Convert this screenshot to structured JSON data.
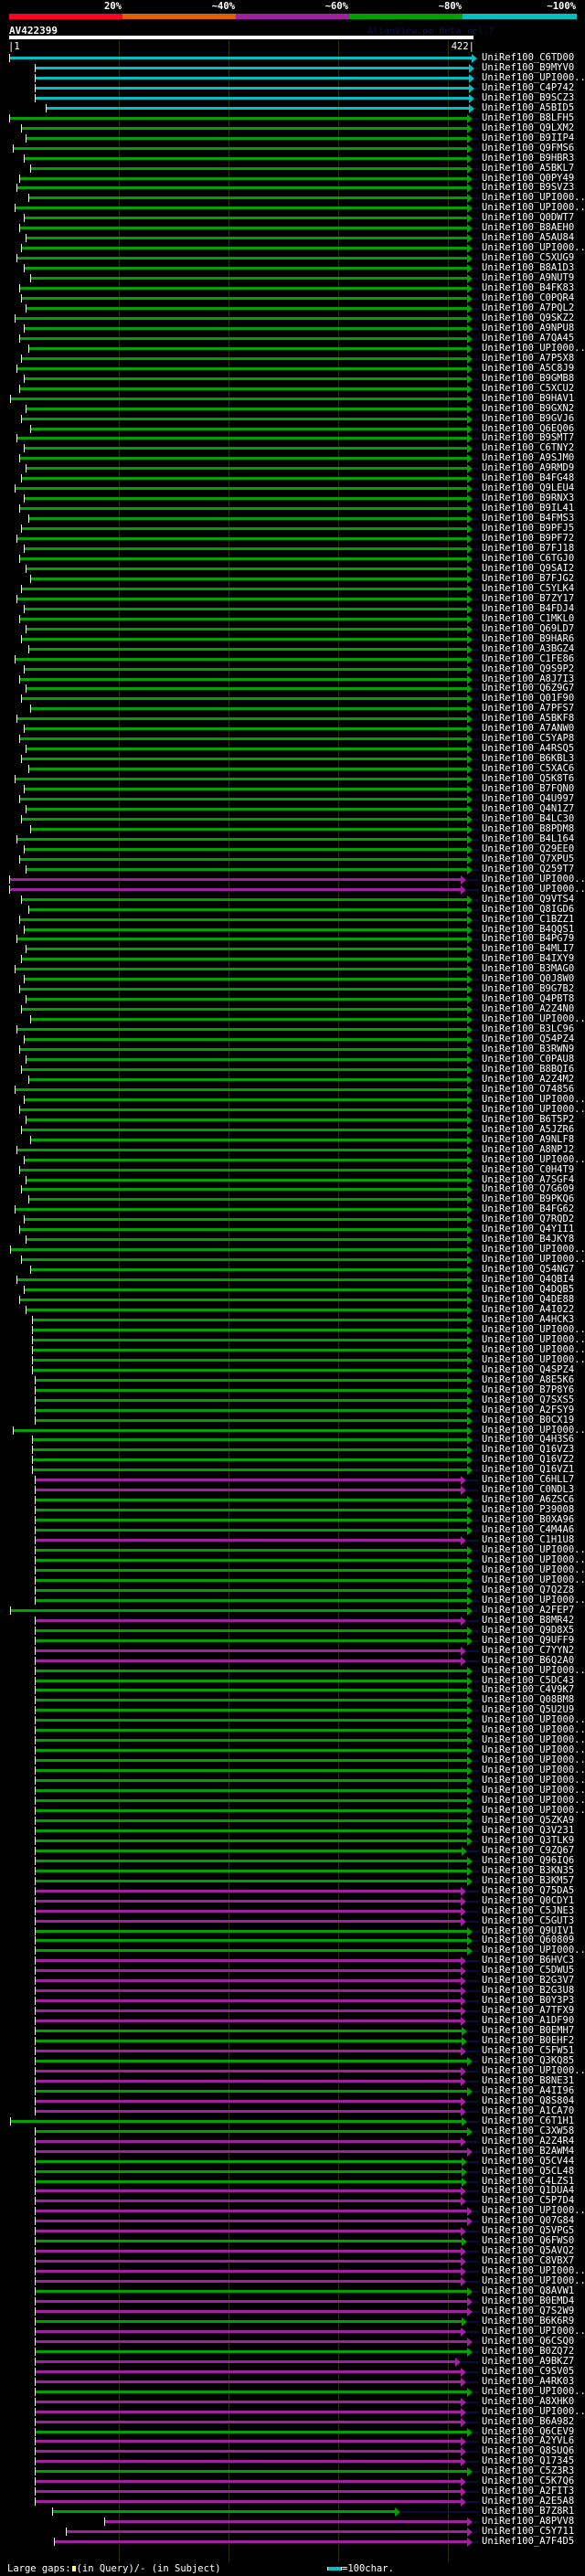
{
  "scale": {
    "labels": [
      "20%",
      "~40%",
      "~60%",
      "~80%",
      "~100%"
    ],
    "colors": [
      "#ff0020",
      "#e06000",
      "#a020a0",
      "#00a000",
      "#00c0c0"
    ]
  },
  "query": {
    "name": "AV422399",
    "start": "1",
    "end": "422",
    "length": 422
  },
  "watermark": "AlignView.pm Beta rel.7",
  "identity_colors": {
    "c": "#00c0c0",
    "g": "#00a000",
    "m": "#a020a0"
  },
  "footer": {
    "large_gaps_label": "Large gaps:",
    "in_query": "(in Query)/",
    "in_subject": "- (in Subject)",
    "scale_label": "=100char."
  },
  "rows": [
    [
      "UniRef100_C6TD00",
      "c",
      1,
      420
    ],
    [
      "UniRef100_B9MYV0",
      "c",
      24,
      418
    ],
    [
      "UniRef100_UPI000..",
      "c",
      24,
      418
    ],
    [
      "UniRef100_C4P742",
      "c",
      24,
      418
    ],
    [
      "UniRef100_B9SCZ3",
      "c",
      24,
      418
    ],
    [
      "UniRef100_A5BID5",
      "c",
      34,
      418
    ],
    [
      "UniRef100_B8LFH5",
      "g",
      1,
      416
    ],
    [
      "UniRef100_Q9LXM2",
      "g",
      12,
      416
    ],
    [
      "UniRef100_B9IIP4",
      "g",
      16,
      416
    ],
    [
      "UniRef100_Q9FMS6",
      "g",
      4,
      416
    ],
    [
      "UniRef100_B9HBR3",
      "g",
      14,
      416
    ],
    [
      "UniRef100_A5BKL7",
      "g",
      20,
      416
    ],
    [
      "UniRef100_Q0PY49",
      "g",
      10,
      416
    ],
    [
      "UniRef100_B9SVZ3",
      "g",
      8,
      416
    ],
    [
      "UniRef100_UPI000..",
      "g",
      18,
      416
    ],
    [
      "UniRef100_UPI000..",
      "g",
      6,
      416
    ],
    [
      "UniRef100_Q0DWT7",
      "g",
      14,
      416
    ],
    [
      "UniRef100_B8AEH0",
      "g",
      10,
      416
    ],
    [
      "UniRef100_A5AU84",
      "g",
      16,
      416
    ],
    [
      "UniRef100_UPI000..",
      "g",
      12,
      416
    ],
    [
      "UniRef100_C5XUG9",
      "g",
      8,
      416
    ],
    [
      "UniRef100_B8A1D3",
      "g",
      14,
      416
    ],
    [
      "UniRef100_A9NUT9",
      "g",
      20,
      416
    ],
    [
      "UniRef100_B4FK83",
      "g",
      10,
      416
    ],
    [
      "UniRef100_C0PQR4",
      "g",
      12,
      416
    ],
    [
      "UniRef100_A7PQL2",
      "g",
      16,
      416
    ],
    [
      "UniRef100_Q9SKZ2",
      "g",
      6,
      416
    ],
    [
      "UniRef100_A9NPU8",
      "g",
      14,
      416
    ],
    [
      "UniRef100_A7QA45",
      "g",
      10,
      416
    ],
    [
      "UniRef100_UPI000..",
      "g",
      18,
      416
    ],
    [
      "UniRef100_A7P5X8",
      "g",
      12,
      416
    ],
    [
      "UniRef100_A5C8J9",
      "g",
      8,
      416
    ],
    [
      "UniRef100_B9GMB8",
      "g",
      14,
      416
    ],
    [
      "UniRef100_C5XCU2",
      "g",
      10,
      416
    ],
    [
      "UniRef100_B9HAV1",
      "g",
      2,
      416
    ],
    [
      "UniRef100_B9GXN2",
      "g",
      16,
      416
    ],
    [
      "UniRef100_B9GVJ6",
      "g",
      12,
      416
    ],
    [
      "UniRef100_Q6EQ06",
      "g",
      20,
      416
    ],
    [
      "UniRef100_B9SMT7",
      "g",
      8,
      416
    ],
    [
      "UniRef100_C6TNY2",
      "g",
      14,
      416
    ],
    [
      "UniRef100_A9SJM0",
      "g",
      10,
      416
    ],
    [
      "UniRef100_A9RMD9",
      "g",
      16,
      416
    ],
    [
      "UniRef100_B4FG48",
      "g",
      12,
      416
    ],
    [
      "UniRef100_Q9LEU4",
      "g",
      6,
      416
    ],
    [
      "UniRef100_B9RNX3",
      "g",
      14,
      416
    ],
    [
      "UniRef100_B9IL41",
      "g",
      10,
      416
    ],
    [
      "UniRef100_B4FMS3",
      "g",
      18,
      416
    ],
    [
      "UniRef100_B9PFJ5",
      "g",
      12,
      416
    ],
    [
      "UniRef100_B9PF72",
      "g",
      8,
      416
    ],
    [
      "UniRef100_B7FJ18",
      "g",
      14,
      416
    ],
    [
      "UniRef100_C6TGJ0",
      "g",
      10,
      416
    ],
    [
      "UniRef100_Q9SAI2",
      "g",
      16,
      416
    ],
    [
      "UniRef100_B7FJG2",
      "g",
      20,
      416
    ],
    [
      "UniRef100_C5YLK4",
      "g",
      12,
      416
    ],
    [
      "UniRef100_B7ZY17",
      "g",
      8,
      416
    ],
    [
      "UniRef100_B4FDJ4",
      "g",
      14,
      416
    ],
    [
      "UniRef100_C1MKL0",
      "g",
      10,
      416
    ],
    [
      "UniRef100_Q69LD7",
      "g",
      16,
      416
    ],
    [
      "UniRef100_B9HAR6",
      "g",
      12,
      416
    ],
    [
      "UniRef100_A3BGZ4",
      "g",
      18,
      416
    ],
    [
      "UniRef100_C1FE86",
      "g",
      6,
      416
    ],
    [
      "UniRef100_Q9S9P2",
      "g",
      14,
      416
    ],
    [
      "UniRef100_A8J7I3",
      "g",
      10,
      416
    ],
    [
      "UniRef100_Q6Z9G7",
      "g",
      16,
      416
    ],
    [
      "UniRef100_Q01F90",
      "g",
      12,
      416
    ],
    [
      "UniRef100_A7PFS7",
      "g",
      20,
      416
    ],
    [
      "UniRef100_A5BKF8",
      "g",
      8,
      416
    ],
    [
      "UniRef100_A7ANW0",
      "g",
      14,
      416
    ],
    [
      "UniRef100_C5YAP8",
      "g",
      10,
      416
    ],
    [
      "UniRef100_A4RSQ5",
      "g",
      16,
      416
    ],
    [
      "UniRef100_B6KBL3",
      "g",
      12,
      416
    ],
    [
      "UniRef100_C5XAC6",
      "g",
      18,
      416
    ],
    [
      "UniRef100_Q5K8T6",
      "g",
      6,
      416
    ],
    [
      "UniRef100_B7FQN0",
      "g",
      14,
      416
    ],
    [
      "UniRef100_Q4U997",
      "g",
      10,
      416
    ],
    [
      "UniRef100_Q4N1Z7",
      "g",
      16,
      416
    ],
    [
      "UniRef100_B4LC30",
      "g",
      12,
      416
    ],
    [
      "UniRef100_B8PDM8",
      "g",
      20,
      416
    ],
    [
      "UniRef100_B4L164",
      "g",
      8,
      416
    ],
    [
      "UniRef100_Q29EE0",
      "g",
      14,
      416
    ],
    [
      "UniRef100_Q7XPU5",
      "g",
      10,
      416
    ],
    [
      "UniRef100_Q259T7",
      "g",
      16,
      416
    ],
    [
      "UniRef100_UPI000..",
      "m",
      1,
      410
    ],
    [
      "UniRef100_UPI000..",
      "m",
      1,
      410
    ],
    [
      "UniRef100_Q9VTS4",
      "g",
      12,
      416
    ],
    [
      "UniRef100_Q8IGD6",
      "g",
      18,
      416
    ],
    [
      "UniRef100_C1BZZ1",
      "g",
      10,
      416
    ],
    [
      "UniRef100_B4QQS1",
      "g",
      14,
      416
    ],
    [
      "UniRef100_B4PG79",
      "g",
      8,
      416
    ],
    [
      "UniRef100_B4MLI7",
      "g",
      16,
      416
    ],
    [
      "UniRef100_B4IXY9",
      "g",
      12,
      416
    ],
    [
      "UniRef100_B3MAG0",
      "g",
      6,
      416
    ],
    [
      "UniRef100_Q0J8W0",
      "g",
      14,
      416
    ],
    [
      "UniRef100_B9G7B2",
      "g",
      10,
      416
    ],
    [
      "UniRef100_Q4PBT8",
      "g",
      16,
      416
    ],
    [
      "UniRef100_A2Z4N0",
      "g",
      12,
      416
    ],
    [
      "UniRef100_UPI000..",
      "g",
      20,
      416
    ],
    [
      "UniRef100_B3LC96",
      "g",
      8,
      416
    ],
    [
      "UniRef100_Q54PZ4",
      "g",
      14,
      416
    ],
    [
      "UniRef100_B3RWN9",
      "g",
      10,
      416
    ],
    [
      "UniRef100_C0PAU8",
      "g",
      16,
      416
    ],
    [
      "UniRef100_B8BQI6",
      "g",
      12,
      416
    ],
    [
      "UniRef100_A2Z4M2",
      "g",
      18,
      416
    ],
    [
      "UniRef100_O74856",
      "g",
      6,
      416
    ],
    [
      "UniRef100_UPI000..",
      "g",
      14,
      416
    ],
    [
      "UniRef100_UPI000..",
      "g",
      10,
      416
    ],
    [
      "UniRef100_B6T5P2",
      "g",
      16,
      416
    ],
    [
      "UniRef100_A5JZR6",
      "g",
      12,
      416
    ],
    [
      "UniRef100_A9NLF8",
      "g",
      20,
      416
    ],
    [
      "UniRef100_A8NPJ2",
      "g",
      8,
      416
    ],
    [
      "UniRef100_UPI000..",
      "g",
      14,
      416
    ],
    [
      "UniRef100_C0H4T9",
      "g",
      10,
      416
    ],
    [
      "UniRef100_A7SGF4",
      "g",
      16,
      416
    ],
    [
      "UniRef100_Q7G609",
      "g",
      12,
      416
    ],
    [
      "UniRef100_B9PKQ6",
      "g",
      18,
      416
    ],
    [
      "UniRef100_B4FG62",
      "g",
      6,
      416
    ],
    [
      "UniRef100_Q7RQD2",
      "g",
      14,
      416
    ],
    [
      "UniRef100_Q4Y1I1",
      "g",
      10,
      416
    ],
    [
      "UniRef100_B4JKY8",
      "g",
      16,
      416
    ],
    [
      "UniRef100_UPI000..",
      "g",
      2,
      416
    ],
    [
      "UniRef100_UPI000..",
      "g",
      12,
      416
    ],
    [
      "UniRef100_Q54NG7",
      "g",
      20,
      416
    ],
    [
      "UniRef100_Q4QBI4",
      "g",
      8,
      416
    ],
    [
      "UniRef100_Q4DQB5",
      "g",
      14,
      416
    ],
    [
      "UniRef100_Q4DE88",
      "g",
      10,
      416
    ],
    [
      "UniRef100_A4I022",
      "g",
      16,
      416
    ],
    [
      "UniRef100_A4HCK3",
      "g",
      22,
      416
    ],
    [
      "UniRef100_UPI000..",
      "g",
      22,
      416
    ],
    [
      "UniRef100_UPI000..",
      "g",
      22,
      416
    ],
    [
      "UniRef100_UPI000..",
      "g",
      22,
      416
    ],
    [
      "UniRef100_UPI000..",
      "g",
      22,
      416
    ],
    [
      "UniRef100_Q4SPZ4",
      "g",
      22,
      416
    ],
    [
      "UniRef100_A8E5K6",
      "g",
      24,
      416
    ],
    [
      "UniRef100_B7P8Y6",
      "g",
      24,
      416
    ],
    [
      "UniRef100_Q7SXS5",
      "g",
      24,
      416
    ],
    [
      "UniRef100_A2FSY9",
      "g",
      24,
      416
    ],
    [
      "UniRef100_B0CX19",
      "g",
      24,
      416
    ],
    [
      "UniRef100_UPI000..",
      "g",
      4,
      416
    ],
    [
      "UniRef100_Q4H3S6",
      "g",
      22,
      416
    ],
    [
      "UniRef100_Q16VZ3",
      "g",
      22,
      416
    ],
    [
      "UniRef100_Q16VZ2",
      "g",
      22,
      416
    ],
    [
      "UniRef100_Q16VZ1",
      "g",
      22,
      416
    ],
    [
      "UniRef100_C6HLL7",
      "m",
      24,
      410
    ],
    [
      "UniRef100_C0NDL3",
      "m",
      24,
      410
    ],
    [
      "UniRef100_A6ZSC6",
      "g",
      24,
      416
    ],
    [
      "UniRef100_P39008",
      "g",
      24,
      416
    ],
    [
      "UniRef100_B0XA96",
      "g",
      24,
      416
    ],
    [
      "UniRef100_C4M4A6",
      "g",
      24,
      416
    ],
    [
      "UniRef100_C1H1U8",
      "m",
      24,
      410
    ],
    [
      "UniRef100_UPI000..",
      "g",
      24,
      416
    ],
    [
      "UniRef100_UPI000..",
      "g",
      24,
      416
    ],
    [
      "UniRef100_UPI000..",
      "g",
      24,
      416
    ],
    [
      "UniRef100_UPI000..",
      "g",
      24,
      416
    ],
    [
      "UniRef100_Q7Q2Z8",
      "g",
      24,
      416
    ],
    [
      "UniRef100_UPI000..",
      "g",
      24,
      416
    ],
    [
      "UniRef100_A2FEP7",
      "g",
      2,
      416
    ],
    [
      "UniRef100_B8MR42",
      "m",
      24,
      410
    ],
    [
      "UniRef100_Q9D8X5",
      "g",
      24,
      416
    ],
    [
      "UniRef100_Q9UFF9",
      "g",
      24,
      416
    ],
    [
      "UniRef100_C7YYN2",
      "m",
      24,
      410
    ],
    [
      "UniRef100_B6Q2A0",
      "m",
      24,
      410
    ],
    [
      "UniRef100_UPI000..",
      "g",
      24,
      416
    ],
    [
      "UniRef100_C5DC43",
      "g",
      24,
      416
    ],
    [
      "UniRef100_C4V9K7",
      "g",
      24,
      416
    ],
    [
      "UniRef100_Q08BM8",
      "g",
      24,
      416
    ],
    [
      "UniRef100_Q5U2U9",
      "g",
      24,
      416
    ],
    [
      "UniRef100_UPI000..",
      "g",
      24,
      416
    ],
    [
      "UniRef100_UPI000..",
      "g",
      24,
      416
    ],
    [
      "UniRef100_UPI000..",
      "g",
      24,
      416
    ],
    [
      "UniRef100_UPI000..",
      "g",
      24,
      416
    ],
    [
      "UniRef100_UPI000..",
      "g",
      24,
      416
    ],
    [
      "UniRef100_UPI000..",
      "g",
      24,
      416
    ],
    [
      "UniRef100_UPI000..",
      "g",
      24,
      416
    ],
    [
      "UniRef100_UPI000..",
      "g",
      24,
      416
    ],
    [
      "UniRef100_UPI000..",
      "g",
      24,
      416
    ],
    [
      "UniRef100_UPI000..",
      "g",
      24,
      416
    ],
    [
      "UniRef100_Q5ZKA9",
      "g",
      24,
      416
    ],
    [
      "UniRef100_Q3V231",
      "g",
      24,
      416
    ],
    [
      "UniRef100_Q3TLK9",
      "g",
      24,
      416
    ],
    [
      "UniRef100_C9ZQ67",
      "g",
      24,
      411
    ],
    [
      "UniRef100_Q96IQ6",
      "g",
      24,
      416
    ],
    [
      "UniRef100_B3KN35",
      "g",
      24,
      416
    ],
    [
      "UniRef100_B3KM57",
      "g",
      24,
      416
    ],
    [
      "UniRef100_Q75DA5",
      "m",
      24,
      410
    ],
    [
      "UniRef100_Q0CDY1",
      "m",
      24,
      410
    ],
    [
      "UniRef100_C5JNE3",
      "m",
      24,
      410
    ],
    [
      "UniRef100_C5GUT3",
      "m",
      24,
      410
    ],
    [
      "UniRef100_Q9UIV1",
      "g",
      24,
      416
    ],
    [
      "UniRef100_Q60809",
      "g",
      24,
      416
    ],
    [
      "UniRef100_UPI000..",
      "g",
      24,
      416
    ],
    [
      "UniRef100_B6HVC3",
      "m",
      24,
      410
    ],
    [
      "UniRef100_C5DWU5",
      "m",
      24,
      410
    ],
    [
      "UniRef100_B2G3V7",
      "m",
      24,
      410
    ],
    [
      "UniRef100_B2G3U8",
      "m",
      24,
      410
    ],
    [
      "UniRef100_B0Y3P3",
      "m",
      24,
      410
    ],
    [
      "UniRef100_A7TFX9",
      "m",
      24,
      410
    ],
    [
      "UniRef100_A1DF90",
      "m",
      24,
      410
    ],
    [
      "UniRef100_B0EMH7",
      "g",
      24,
      411
    ],
    [
      "UniRef100_B0EHF2",
      "g",
      24,
      411
    ],
    [
      "UniRef100_C5FW51",
      "m",
      24,
      410
    ],
    [
      "UniRef100_Q3KQ85",
      "g",
      24,
      416
    ],
    [
      "UniRef100_UPI000..",
      "m",
      24,
      410
    ],
    [
      "UniRef100_B8NE31",
      "m",
      24,
      410
    ],
    [
      "UniRef100_A4II96",
      "g",
      24,
      416
    ],
    [
      "UniRef100_Q8S804",
      "m",
      24,
      410
    ],
    [
      "UniRef100_A1CA70",
      "m",
      24,
      410
    ],
    [
      "UniRef100_C6T1H1",
      "g",
      2,
      411
    ],
    [
      "UniRef100_C3XW58",
      "g",
      24,
      416
    ],
    [
      "UniRef100_A2Z4R4",
      "m",
      24,
      410
    ],
    [
      "UniRef100_B2AWM4",
      "m",
      24,
      416
    ],
    [
      "UniRef100_Q5CV44",
      "g",
      24,
      411
    ],
    [
      "UniRef100_Q5CL48",
      "g",
      24,
      411
    ],
    [
      "UniRef100_C4LZS1",
      "g",
      24,
      411
    ],
    [
      "UniRef100_Q1DUA4",
      "m",
      24,
      410
    ],
    [
      "UniRef100_C5P7D4",
      "m",
      24,
      410
    ],
    [
      "UniRef100_UPI000..",
      "m",
      24,
      416
    ],
    [
      "UniRef100_Q07G84",
      "m",
      24,
      416
    ],
    [
      "UniRef100_Q5VPG5",
      "m",
      24,
      410
    ],
    [
      "UniRef100_Q6FWS0",
      "g",
      24,
      411
    ],
    [
      "UniRef100_Q5AVQ2",
      "m",
      24,
      410
    ],
    [
      "UniRef100_C8VBX7",
      "m",
      24,
      410
    ],
    [
      "UniRef100_UPI000..",
      "m",
      24,
      410
    ],
    [
      "UniRef100_UPI000..",
      "m",
      24,
      410
    ],
    [
      "UniRef100_Q8AVW1",
      "g",
      24,
      416
    ],
    [
      "UniRef100_B0EMD4",
      "m",
      24,
      416
    ],
    [
      "UniRef100_Q7S2W9",
      "m",
      24,
      416
    ],
    [
      "UniRef100_B6K6R9",
      "g",
      24,
      411
    ],
    [
      "UniRef100_UPI000..",
      "m",
      24,
      410
    ],
    [
      "UniRef100_Q6CSQ0",
      "m",
      24,
      416
    ],
    [
      "UniRef100_B0ZQ72",
      "g",
      24,
      416
    ],
    [
      "UniRef100_A9BKZ7",
      "m",
      24,
      405
    ],
    [
      "UniRef100_C9SV05",
      "m",
      24,
      410
    ],
    [
      "UniRef100_A4RK03",
      "m",
      24,
      410
    ],
    [
      "UniRef100_UPI000..",
      "g",
      24,
      416
    ],
    [
      "UniRef100_A8XHK0",
      "m",
      24,
      410
    ],
    [
      "UniRef100_UPI000..",
      "m",
      24,
      410
    ],
    [
      "UniRef100_B6A982",
      "m",
      24,
      410
    ],
    [
      "UniRef100_Q6CEV9",
      "g",
      24,
      416
    ],
    [
      "UniRef100_A2YVL6",
      "m",
      24,
      410
    ],
    [
      "UniRef100_Q8SUQ6",
      "m",
      24,
      410
    ],
    [
      "UniRef100_Q17345",
      "m",
      24,
      410
    ],
    [
      "UniRef100_C5Z3R3",
      "g",
      24,
      416
    ],
    [
      "UniRef100_C5K7Q6",
      "m",
      24,
      410
    ],
    [
      "UniRef100_A2FIT3",
      "m",
      24,
      410
    ],
    [
      "UniRef100_A2E5A8",
      "m",
      24,
      410
    ],
    [
      "UniRef100_B7Z8R1",
      "g",
      40,
      351
    ],
    [
      "UniRef100_A8PVV8",
      "m",
      87,
      416
    ],
    [
      "UniRef100_C5Y711",
      "m",
      52,
      416
    ],
    [
      "UniRef100_A7F4D5",
      "m",
      42,
      416
    ]
  ]
}
